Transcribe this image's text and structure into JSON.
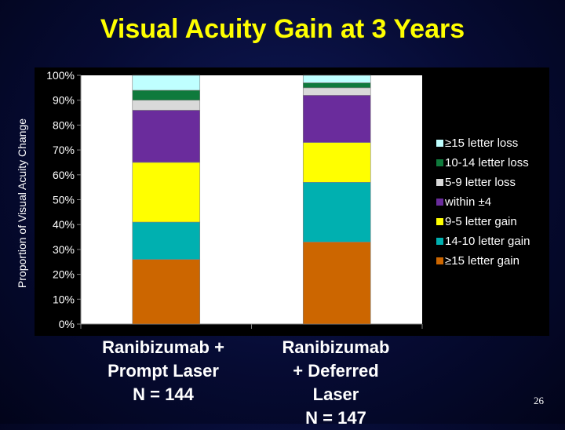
{
  "title": "Visual Acuity Gain at 3 Years",
  "page_number": "26",
  "chart_data": {
    "type": "bar",
    "stacked": true,
    "title": "Visual Acuity Gain at 3 Years",
    "ylabel": "Proportion of Visual Acuity Change",
    "xlabel": "",
    "ylim": [
      0,
      100
    ],
    "yticks": [
      "0%",
      "10%",
      "20%",
      "30%",
      "40%",
      "50%",
      "60%",
      "70%",
      "80%",
      "90%",
      "100%"
    ],
    "categories": [
      [
        "Ranibizumab +",
        "Prompt Laser",
        "N = 144"
      ],
      [
        "Ranibizumab",
        "+ Deferred",
        "Laser",
        "N = 147"
      ]
    ],
    "series": [
      {
        "name": "≥15 letter gain",
        "color": "#cc6600",
        "values": [
          26,
          33
        ]
      },
      {
        "name": "14-10 letter gain",
        "color": "#00b0b0",
        "values": [
          15,
          24
        ]
      },
      {
        "name": "9-5 letter gain",
        "color": "#ffff00",
        "values": [
          24,
          16
        ]
      },
      {
        "name": "within ±4",
        "color": "#6a2c9c",
        "values": [
          21,
          19
        ]
      },
      {
        "name": "5-9 letter loss",
        "color": "#d9d9d9",
        "values": [
          4,
          3
        ]
      },
      {
        "name": "10-14 letter loss",
        "color": "#0f7a3c",
        "values": [
          4,
          2
        ]
      },
      {
        "name": "≥15 letter loss",
        "color": "#bfffff",
        "values": [
          6,
          3
        ]
      }
    ],
    "legend_position": "right",
    "grid": false
  }
}
